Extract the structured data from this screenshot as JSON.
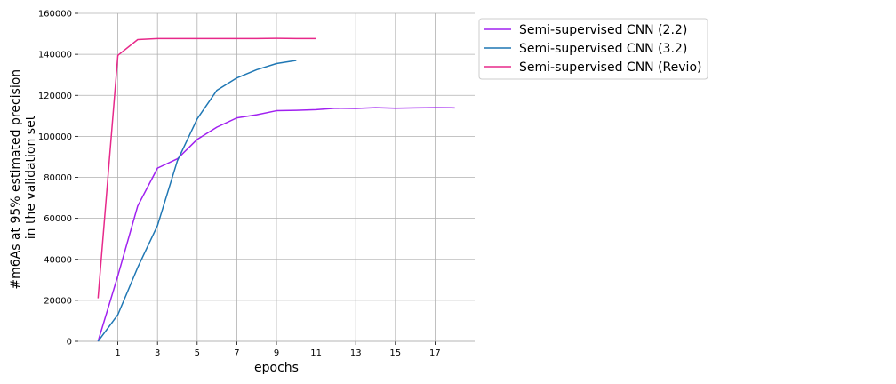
{
  "chart_data": {
    "type": "line",
    "xlabel": "epochs",
    "ylabel_lines": [
      "#m6As at 95% estimated precision",
      "in the validation set"
    ],
    "xlim": [
      -1,
      19
    ],
    "ylim": [
      0,
      160000
    ],
    "xticks": [
      1,
      3,
      5,
      7,
      9,
      11,
      13,
      15,
      17
    ],
    "yticks": [
      0,
      20000,
      40000,
      60000,
      80000,
      100000,
      120000,
      140000,
      160000
    ],
    "grid": true,
    "legend_position": "outside right, top",
    "series": [
      {
        "name": "Semi-supervised CNN (2.2)",
        "color": "#a020f0",
        "x": [
          0,
          1,
          2,
          3,
          4,
          5,
          6,
          7,
          8,
          9,
          10,
          11,
          12,
          13,
          14,
          15,
          16,
          17,
          18
        ],
        "values": [
          0,
          32000,
          66000,
          84500,
          89000,
          98500,
          104500,
          109000,
          110500,
          112500,
          112700,
          113000,
          113700,
          113600,
          114000,
          113700,
          113900,
          114000,
          113900
        ]
      },
      {
        "name": "Semi-supervised CNN (3.2)",
        "color": "#1f77b4",
        "x": [
          0,
          1,
          2,
          3,
          4,
          5,
          6,
          7,
          8,
          9,
          10
        ],
        "values": [
          0,
          13000,
          36000,
          56500,
          88000,
          108500,
          122500,
          128500,
          132500,
          135500,
          137000
        ]
      },
      {
        "name": "Semi-supervised CNN (Revio)",
        "color": "#e7298a",
        "x": [
          0,
          1,
          2,
          3,
          4,
          5,
          6,
          7,
          8,
          9,
          10,
          11
        ],
        "values": [
          21000,
          139500,
          147200,
          147700,
          147700,
          147700,
          147700,
          147700,
          147700,
          147800,
          147700,
          147700
        ]
      }
    ]
  }
}
